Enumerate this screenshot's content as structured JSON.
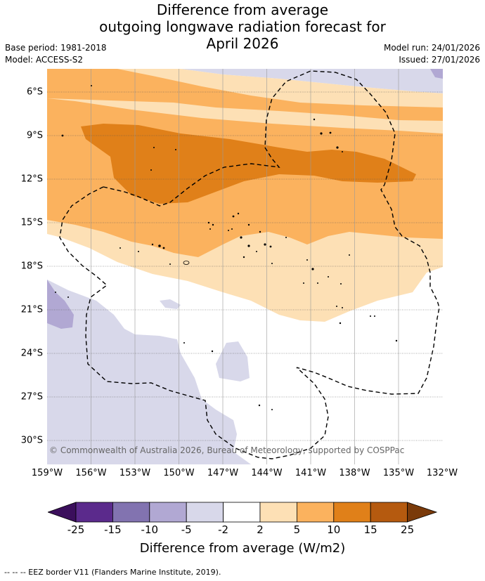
{
  "title": {
    "line1": "Difference from average",
    "line2": "outgoing longwave radiation forecast for",
    "line3": "April 2026"
  },
  "meta": {
    "base_period": "Base period: 1981-2018",
    "model": "Model: ACCESS-S2",
    "model_run": "Model run: 24/01/2026",
    "issued": "Issued: 27/01/2026"
  },
  "map": {
    "lat_labels": [
      "6°S",
      "9°S",
      "12°S",
      "15°S",
      "18°S",
      "21°S",
      "24°S",
      "27°S",
      "30°S"
    ],
    "lon_labels": [
      "159°W",
      "156°W",
      "153°W",
      "150°W",
      "147°W",
      "144°W",
      "141°W",
      "138°W",
      "135°W",
      "132°W"
    ],
    "copyright": "© Commonwealth of Australia 2026, Bureau of Meteorology, supported by COSPPac"
  },
  "colorbar": {
    "ticks": [
      "-25",
      "-15",
      "-10",
      "-5",
      "-2",
      "2",
      "5",
      "10",
      "15",
      "25"
    ],
    "colors": [
      "#3b0f5c",
      "#5b2a8c",
      "#8273b0",
      "#b1a8d3",
      "#d8d8ea",
      "#ffffff",
      "#fde0b5",
      "#fbb25e",
      "#e08019",
      "#b55a0f",
      "#7a3a0a"
    ],
    "label": "Difference from average (W/m2)"
  },
  "footer": {
    "eez_note": "-- -- -- EEZ border V11 (Flanders Marine Institute, 2019)."
  }
}
